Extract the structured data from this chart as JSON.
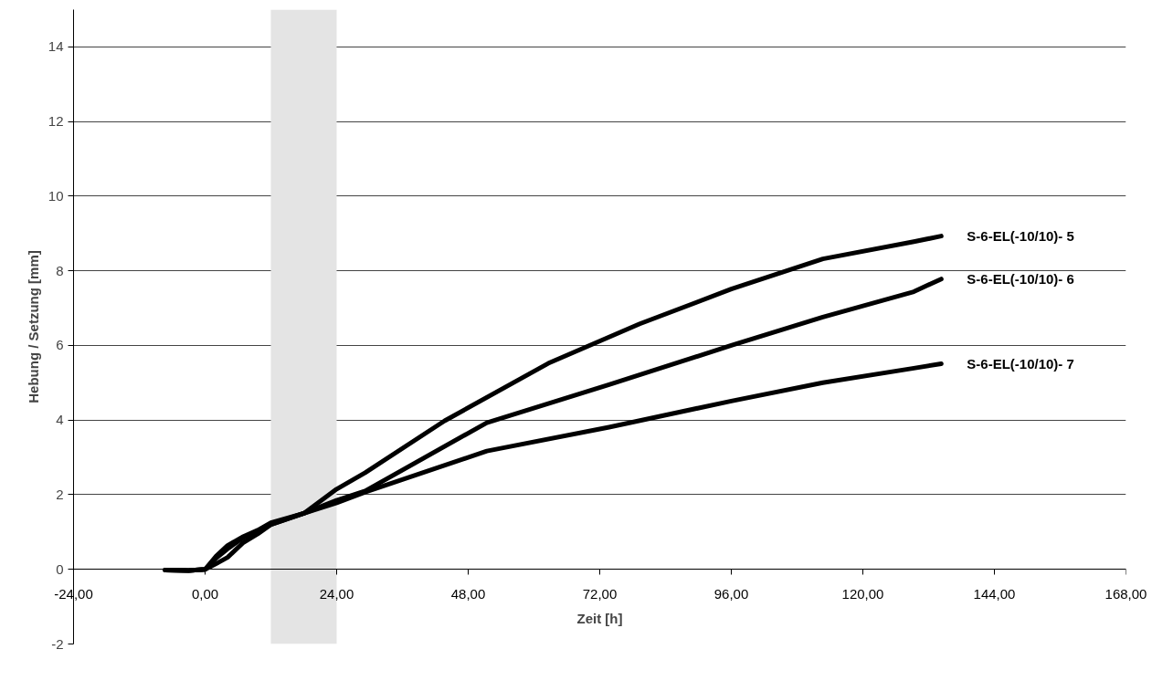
{
  "chart_data": {
    "type": "line",
    "xlabel": "Zeit [h]",
    "ylabel": "Hebung / Setzung [mm]",
    "xlim": [
      -24,
      168
    ],
    "ylim": [
      -2,
      15
    ],
    "xticks": [
      {
        "value": -24,
        "label": "-24,00"
      },
      {
        "value": 0,
        "label": "0,00"
      },
      {
        "value": 24,
        "label": "24,00"
      },
      {
        "value": 48,
        "label": "48,00"
      },
      {
        "value": 72,
        "label": "72,00"
      },
      {
        "value": 96,
        "label": "96,00"
      },
      {
        "value": 120,
        "label": "120,00"
      },
      {
        "value": 144,
        "label": "144,00"
      },
      {
        "value": 168,
        "label": "168,00"
      }
    ],
    "yticks": [
      -2,
      0,
      2,
      4,
      6,
      8,
      10,
      12,
      14
    ],
    "grid": "y",
    "marker": "none",
    "line_style": "solid",
    "bands": [
      {
        "axis": "x",
        "from": 12,
        "to": 24,
        "color": "#e4e4e4"
      }
    ],
    "series": [
      {
        "name": "S-6-EL(-10/10)- 5",
        "color": "#000000",
        "x": [
          -7.3,
          -3,
          0,
          2,
          4.1,
          7,
          9.6,
          12,
          18,
          24,
          29.2,
          43.7,
          62.6,
          79.3,
          96,
          112.7,
          129.3,
          134.3
        ],
        "values": [
          -0.02,
          -0.03,
          0,
          0.15,
          0.32,
          0.72,
          0.95,
          1.2,
          1.5,
          2.15,
          2.59,
          3.98,
          5.52,
          6.58,
          7.51,
          8.32,
          8.78,
          8.93
        ]
      },
      {
        "name": "S-6-EL(-10/10)- 6",
        "color": "#000000",
        "x": [
          -7.3,
          -3,
          0,
          2,
          4.1,
          7,
          9.6,
          12,
          18,
          24,
          29.2,
          51.4,
          73.7,
          96,
          112.7,
          129.3,
          134.3
        ],
        "values": [
          -0.02,
          -0.03,
          0,
          0.3,
          0.55,
          0.85,
          1.0,
          1.2,
          1.5,
          1.85,
          2.1,
          3.93,
          4.95,
          6.0,
          6.76,
          7.44,
          7.78
        ]
      },
      {
        "name": "S-6-EL(-10/10)- 7",
        "color": "#000000",
        "x": [
          -7.3,
          -3,
          0,
          2,
          4.1,
          7,
          9.6,
          12,
          18,
          24,
          29.2,
          51.4,
          73.7,
          96,
          112.7,
          129.3,
          134.3
        ],
        "values": [
          -0.02,
          -0.03,
          0,
          0.35,
          0.64,
          0.88,
          1.05,
          1.25,
          1.5,
          1.78,
          2.07,
          3.17,
          3.81,
          4.51,
          5.0,
          5.39,
          5.51
        ]
      }
    ]
  }
}
